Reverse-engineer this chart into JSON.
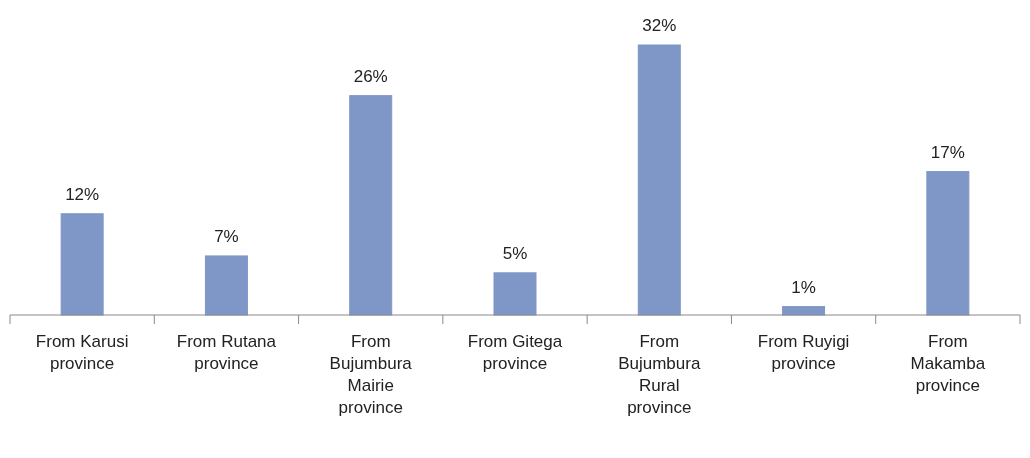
{
  "chart_data": {
    "type": "bar",
    "categories": [
      "From Karusi province",
      "From Rutana province",
      "From Bujumbura Mairie province",
      "From Gitega province",
      "From Bujumbura Rural province",
      "From Ruyigi province",
      "From Makamba province"
    ],
    "values": [
      12,
      7,
      26,
      5,
      32,
      1,
      17
    ],
    "value_labels": [
      "12%",
      "7%",
      "26%",
      "5%",
      "32%",
      "1%",
      "17%"
    ],
    "color": "#7f97c6"
  }
}
